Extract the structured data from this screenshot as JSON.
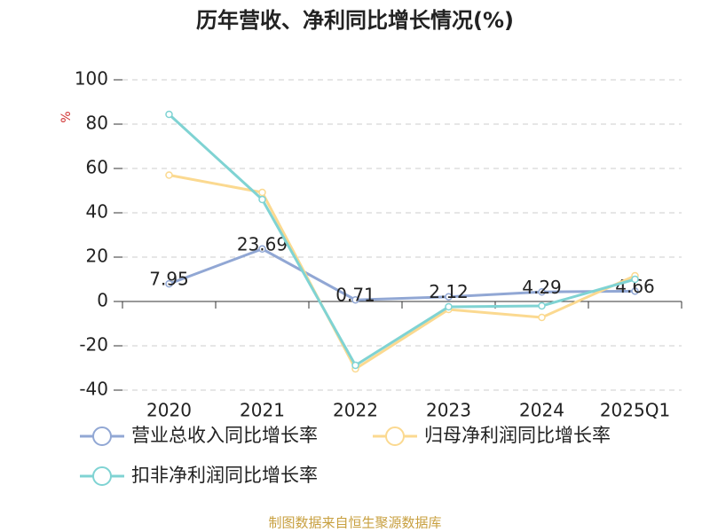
{
  "chart_data": {
    "type": "line",
    "title": "历年营收、净利同比增长情况(%)",
    "y_label": "%",
    "categories": [
      "2020",
      "2021",
      "2022",
      "2023",
      "2024",
      "2025Q1"
    ],
    "series": [
      {
        "name": "营业总收入同比增长率",
        "color": "#91a7d4",
        "values": [
          7.95,
          23.69,
          0.71,
          2.12,
          4.29,
          4.66
        ],
        "show_labels": true
      },
      {
        "name": "归母净利润同比增长率",
        "color": "#fbd990",
        "values": [
          57,
          49.2,
          -30.4,
          -3.6,
          -7.2,
          11.6
        ]
      },
      {
        "name": "扣非净利润同比增长率",
        "color": "#7fd3d3",
        "values": [
          84.4,
          46,
          -28.8,
          -2.4,
          -2,
          10
        ]
      }
    ],
    "ylim": [
      -40,
      100
    ],
    "yticks": [
      -40,
      -20,
      0,
      20,
      40,
      60,
      80,
      100
    ],
    "grid": true,
    "source": "制图数据来自恒生聚源数据库"
  }
}
